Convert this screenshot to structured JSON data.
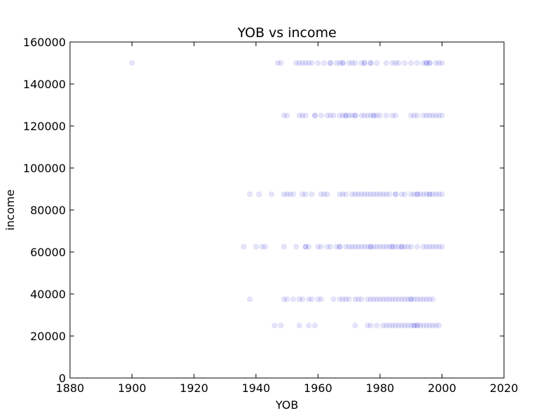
{
  "chart_data": {
    "type": "scatter",
    "title": "YOB vs income",
    "xlabel": "YOB",
    "ylabel": "income",
    "xlim": [
      1880,
      2020
    ],
    "ylim": [
      0,
      160000
    ],
    "xticks": [
      "1880",
      "1900",
      "1920",
      "1940",
      "1960",
      "1980",
      "2000",
      "2020"
    ],
    "yticks": [
      "0",
      "20000",
      "40000",
      "60000",
      "80000",
      "100000",
      "120000",
      "140000",
      "160000"
    ],
    "grid": false,
    "legend": "none",
    "marker_color": "#0000cc",
    "series": [
      {
        "points": [
          [
            1900,
            150000
          ],
          [
            1947,
            150000
          ],
          [
            1948,
            150000
          ],
          [
            1953,
            150000
          ],
          [
            1954,
            150000
          ],
          [
            1955,
            150000
          ],
          [
            1956,
            150000
          ],
          [
            1957,
            150000
          ],
          [
            1958,
            150000
          ],
          [
            1960,
            150000
          ],
          [
            1962,
            150000
          ],
          [
            1964,
            150000
          ],
          [
            1964,
            150000
          ],
          [
            1966,
            150000
          ],
          [
            1967,
            150000
          ],
          [
            1968,
            150000
          ],
          [
            1968,
            150000
          ],
          [
            1970,
            150000
          ],
          [
            1971,
            150000
          ],
          [
            1972,
            150000
          ],
          [
            1974,
            150000
          ],
          [
            1975,
            150000
          ],
          [
            1975,
            150000
          ],
          [
            1977,
            150000
          ],
          [
            1977,
            150000
          ],
          [
            1979,
            150000
          ],
          [
            1982,
            150000
          ],
          [
            1984,
            150000
          ],
          [
            1985,
            150000
          ],
          [
            1986,
            150000
          ],
          [
            1988,
            150000
          ],
          [
            1990,
            150000
          ],
          [
            1992,
            150000
          ],
          [
            1994,
            150000
          ],
          [
            1995,
            150000
          ],
          [
            1995,
            150000
          ],
          [
            1996,
            150000
          ],
          [
            1996,
            150000
          ],
          [
            1998,
            150000
          ],
          [
            1999,
            150000
          ],
          [
            2000,
            150000
          ],
          [
            1949,
            125000
          ],
          [
            1950,
            125000
          ],
          [
            1954,
            125000
          ],
          [
            1955,
            125000
          ],
          [
            1956,
            125000
          ],
          [
            1959,
            125000
          ],
          [
            1959,
            125000
          ],
          [
            1961,
            125000
          ],
          [
            1963,
            125000
          ],
          [
            1964,
            125000
          ],
          [
            1965,
            125000
          ],
          [
            1967,
            125000
          ],
          [
            1968,
            125000
          ],
          [
            1969,
            125000
          ],
          [
            1969,
            125000
          ],
          [
            1970,
            125000
          ],
          [
            1971,
            125000
          ],
          [
            1972,
            125000
          ],
          [
            1972,
            125000
          ],
          [
            1974,
            125000
          ],
          [
            1975,
            125000
          ],
          [
            1976,
            125000
          ],
          [
            1977,
            125000
          ],
          [
            1978,
            125000
          ],
          [
            1978,
            125000
          ],
          [
            1979,
            125000
          ],
          [
            1980,
            125000
          ],
          [
            1982,
            125000
          ],
          [
            1984,
            125000
          ],
          [
            1985,
            125000
          ],
          [
            1990,
            125000
          ],
          [
            1991,
            125000
          ],
          [
            1992,
            125000
          ],
          [
            1994,
            125000
          ],
          [
            1995,
            125000
          ],
          [
            1996,
            125000
          ],
          [
            1997,
            125000
          ],
          [
            1998,
            125000
          ],
          [
            1999,
            125000
          ],
          [
            2000,
            125000
          ],
          [
            1938,
            87500
          ],
          [
            1941,
            87500
          ],
          [
            1945,
            87500
          ],
          [
            1949,
            87500
          ],
          [
            1950,
            87500
          ],
          [
            1951,
            87500
          ],
          [
            1952,
            87500
          ],
          [
            1955,
            87500
          ],
          [
            1956,
            87500
          ],
          [
            1958,
            87500
          ],
          [
            1961,
            87500
          ],
          [
            1962,
            87500
          ],
          [
            1963,
            87500
          ],
          [
            1967,
            87500
          ],
          [
            1968,
            87500
          ],
          [
            1969,
            87500
          ],
          [
            1971,
            87500
          ],
          [
            1972,
            87500
          ],
          [
            1973,
            87500
          ],
          [
            1974,
            87500
          ],
          [
            1975,
            87500
          ],
          [
            1976,
            87500
          ],
          [
            1977,
            87500
          ],
          [
            1978,
            87500
          ],
          [
            1979,
            87500
          ],
          [
            1980,
            87500
          ],
          [
            1981,
            87500
          ],
          [
            1982,
            87500
          ],
          [
            1983,
            87500
          ],
          [
            1985,
            87500
          ],
          [
            1985,
            87500
          ],
          [
            1987,
            87500
          ],
          [
            1988,
            87500
          ],
          [
            1990,
            87500
          ],
          [
            1991,
            87500
          ],
          [
            1992,
            87500
          ],
          [
            1992,
            87500
          ],
          [
            1993,
            87500
          ],
          [
            1994,
            87500
          ],
          [
            1995,
            87500
          ],
          [
            1996,
            87500
          ],
          [
            1996,
            87500
          ],
          [
            1997,
            87500
          ],
          [
            1998,
            87500
          ],
          [
            1999,
            87500
          ],
          [
            2000,
            87500
          ],
          [
            1936,
            62500
          ],
          [
            1940,
            62500
          ],
          [
            1942,
            62500
          ],
          [
            1943,
            62500
          ],
          [
            1949,
            62500
          ],
          [
            1953,
            62500
          ],
          [
            1956,
            62500
          ],
          [
            1956,
            62500
          ],
          [
            1957,
            62500
          ],
          [
            1960,
            62500
          ],
          [
            1961,
            62500
          ],
          [
            1963,
            62500
          ],
          [
            1964,
            62500
          ],
          [
            1966,
            62500
          ],
          [
            1967,
            62500
          ],
          [
            1967,
            62500
          ],
          [
            1969,
            62500
          ],
          [
            1970,
            62500
          ],
          [
            1971,
            62500
          ],
          [
            1972,
            62500
          ],
          [
            1973,
            62500
          ],
          [
            1974,
            62500
          ],
          [
            1975,
            62500
          ],
          [
            1976,
            62500
          ],
          [
            1977,
            62500
          ],
          [
            1977,
            62500
          ],
          [
            1978,
            62500
          ],
          [
            1979,
            62500
          ],
          [
            1980,
            62500
          ],
          [
            1981,
            62500
          ],
          [
            1982,
            62500
          ],
          [
            1983,
            62500
          ],
          [
            1984,
            62500
          ],
          [
            1984,
            62500
          ],
          [
            1985,
            62500
          ],
          [
            1986,
            62500
          ],
          [
            1987,
            62500
          ],
          [
            1987,
            62500
          ],
          [
            1988,
            62500
          ],
          [
            1989,
            62500
          ],
          [
            1990,
            62500
          ],
          [
            1992,
            62500
          ],
          [
            1994,
            62500
          ],
          [
            1995,
            62500
          ],
          [
            1996,
            62500
          ],
          [
            1997,
            62500
          ],
          [
            1998,
            62500
          ],
          [
            1999,
            62500
          ],
          [
            2000,
            62500
          ],
          [
            1938,
            37500
          ],
          [
            1949,
            37500
          ],
          [
            1950,
            37500
          ],
          [
            1952,
            37500
          ],
          [
            1954,
            37500
          ],
          [
            1955,
            37500
          ],
          [
            1957,
            37500
          ],
          [
            1958,
            37500
          ],
          [
            1960,
            37500
          ],
          [
            1961,
            37500
          ],
          [
            1965,
            37500
          ],
          [
            1967,
            37500
          ],
          [
            1968,
            37500
          ],
          [
            1969,
            37500
          ],
          [
            1970,
            37500
          ],
          [
            1972,
            37500
          ],
          [
            1973,
            37500
          ],
          [
            1974,
            37500
          ],
          [
            1976,
            37500
          ],
          [
            1977,
            37500
          ],
          [
            1978,
            37500
          ],
          [
            1979,
            37500
          ],
          [
            1980,
            37500
          ],
          [
            1981,
            37500
          ],
          [
            1982,
            37500
          ],
          [
            1983,
            37500
          ],
          [
            1984,
            37500
          ],
          [
            1985,
            37500
          ],
          [
            1986,
            37500
          ],
          [
            1987,
            37500
          ],
          [
            1988,
            37500
          ],
          [
            1989,
            37500
          ],
          [
            1990,
            37500
          ],
          [
            1990,
            37500
          ],
          [
            1991,
            37500
          ],
          [
            1992,
            37500
          ],
          [
            1993,
            37500
          ],
          [
            1994,
            37500
          ],
          [
            1995,
            37500
          ],
          [
            1996,
            37500
          ],
          [
            1997,
            37500
          ],
          [
            1946,
            25000
          ],
          [
            1948,
            25000
          ],
          [
            1954,
            25000
          ],
          [
            1957,
            25000
          ],
          [
            1959,
            25000
          ],
          [
            1972,
            25000
          ],
          [
            1976,
            25000
          ],
          [
            1977,
            25000
          ],
          [
            1979,
            25000
          ],
          [
            1981,
            25000
          ],
          [
            1982,
            25000
          ],
          [
            1983,
            25000
          ],
          [
            1984,
            25000
          ],
          [
            1985,
            25000
          ],
          [
            1986,
            25000
          ],
          [
            1987,
            25000
          ],
          [
            1988,
            25000
          ],
          [
            1989,
            25000
          ],
          [
            1990,
            25000
          ],
          [
            1991,
            25000
          ],
          [
            1991,
            25000
          ],
          [
            1992,
            25000
          ],
          [
            1992,
            25000
          ],
          [
            1993,
            25000
          ],
          [
            1994,
            25000
          ],
          [
            1995,
            25000
          ],
          [
            1996,
            25000
          ],
          [
            1997,
            25000
          ],
          [
            1998,
            25000
          ],
          [
            1999,
            25000
          ]
        ]
      }
    ]
  }
}
